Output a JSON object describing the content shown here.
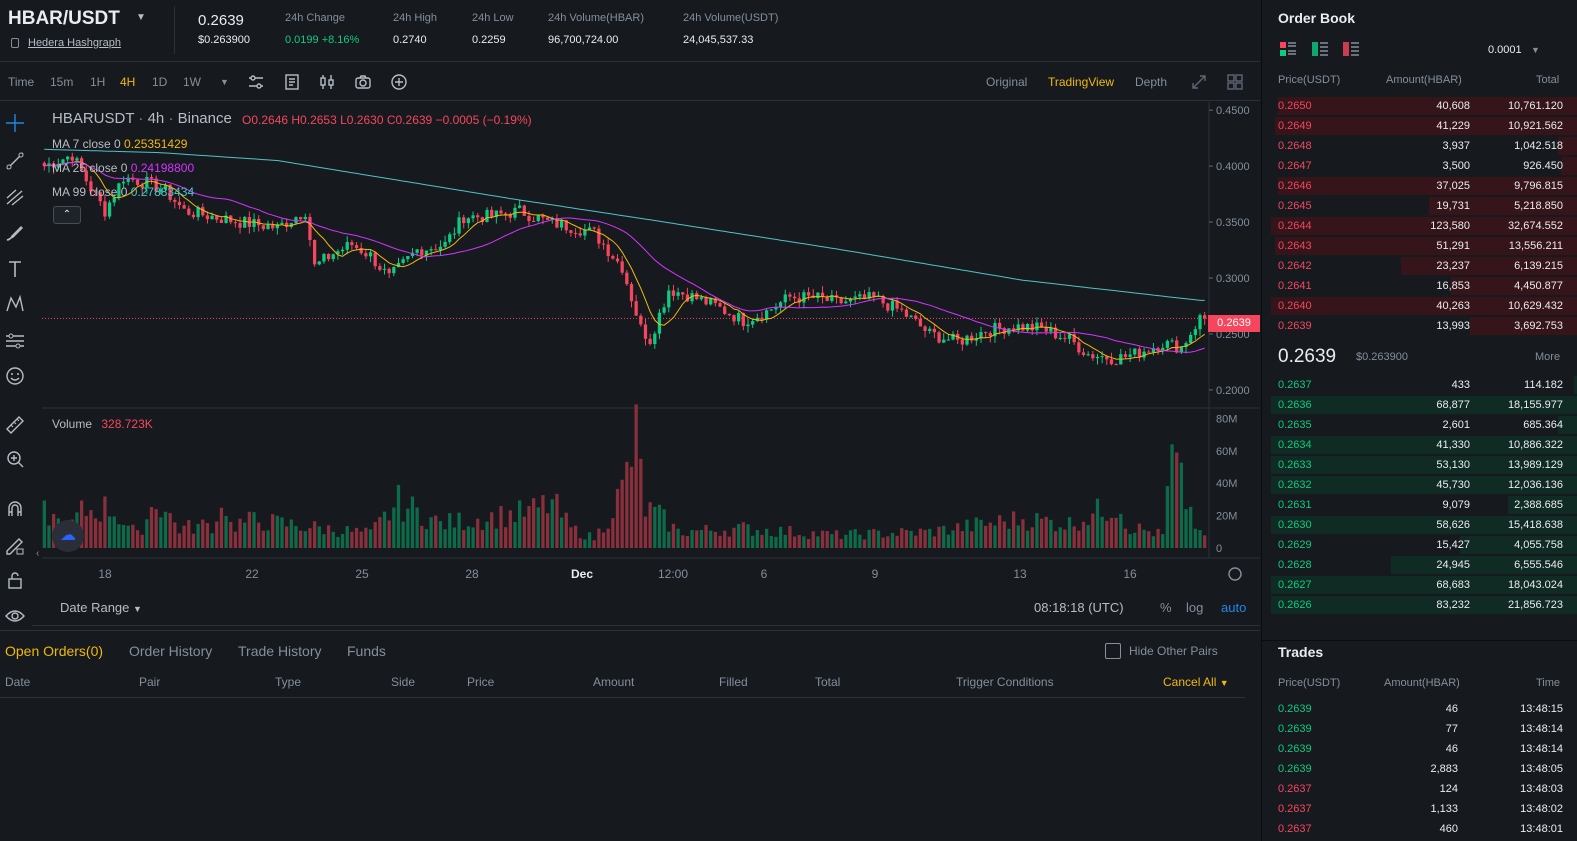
{
  "header": {
    "pair": "HBAR/USDT",
    "pair_name": "Hedera Hashgraph",
    "price": "0.2639",
    "price_usd": "$0.263900",
    "stats": [
      {
        "label": "24h Change",
        "value": "0.0199 +8.16%",
        "up": true
      },
      {
        "label": "24h High",
        "value": "0.2740"
      },
      {
        "label": "24h Low",
        "value": "0.2259"
      },
      {
        "label": "24h Volume(HBAR)",
        "value": "96,700,724.00"
      },
      {
        "label": "24h Volume(USDT)",
        "value": "24,045,537.33"
      }
    ]
  },
  "toolbar": {
    "timeframes": [
      "Time",
      "15m",
      "1H",
      "4H",
      "1D",
      "1W"
    ],
    "active_timeframe": "4H",
    "views": [
      "Original",
      "TradingView",
      "Depth"
    ],
    "active_view": "TradingView"
  },
  "chart_legend": {
    "symbol": "HBARUSDT",
    "interval": "4h",
    "exchange": "Binance",
    "open": "O0.2646",
    "high": "H0.2653",
    "low": "L0.2630",
    "close": "C0.2639",
    "change": "−0.0005 (−0.19%)",
    "ma7_label": "MA 7 close 0",
    "ma7_value": "0.25351429",
    "ma25_label": "MA 25 close 0",
    "ma25_value": "0.24198800",
    "ma99_label": "MA 99 close 0",
    "ma99_value": "0.27883434",
    "volume_label": "Volume",
    "volume_value": "328.723K",
    "last_price_tag": "0.2639",
    "collapse_glyph": "⌃",
    "tv_logo_glyph": "☁"
  },
  "chart_data": {
    "type": "candlestick",
    "price_axis_ticks": [
      "0.4500",
      "0.4000",
      "0.3500",
      "0.3000",
      "0.2500",
      "0.2000"
    ],
    "price_ylim": [
      0.1865,
      0.4555
    ],
    "volume_axis_ticks": [
      "80M",
      "60M",
      "40M",
      "20M",
      "0"
    ],
    "volume_ylim": [
      0,
      84
    ],
    "x_tick_labels": [
      "18",
      "22",
      "25",
      "28",
      "Dec",
      "12:00",
      "6",
      "9",
      "13",
      "16"
    ],
    "last_price": 0.2639,
    "close_anchors": [
      [
        0,
        0.4
      ],
      [
        6,
        0.41
      ],
      [
        10,
        0.38
      ],
      [
        13,
        0.36
      ],
      [
        17,
        0.39
      ],
      [
        22,
        0.385
      ],
      [
        26,
        0.378
      ],
      [
        30,
        0.36
      ],
      [
        36,
        0.355
      ],
      [
        42,
        0.35
      ],
      [
        50,
        0.345
      ],
      [
        56,
        0.36
      ],
      [
        58,
        0.31
      ],
      [
        62,
        0.322
      ],
      [
        66,
        0.33
      ],
      [
        70,
        0.32
      ],
      [
        74,
        0.3
      ],
      [
        80,
        0.325
      ],
      [
        86,
        0.33
      ],
      [
        90,
        0.355
      ],
      [
        96,
        0.355
      ],
      [
        102,
        0.36
      ],
      [
        108,
        0.35
      ],
      [
        114,
        0.345
      ],
      [
        118,
        0.34
      ],
      [
        124,
        0.31
      ],
      [
        128,
        0.255
      ],
      [
        130,
        0.245
      ],
      [
        134,
        0.29
      ],
      [
        138,
        0.285
      ],
      [
        144,
        0.275
      ],
      [
        150,
        0.262
      ],
      [
        155,
        0.27
      ],
      [
        160,
        0.283
      ],
      [
        166,
        0.282
      ],
      [
        170,
        0.278
      ],
      [
        178,
        0.282
      ],
      [
        184,
        0.27
      ],
      [
        190,
        0.25
      ],
      [
        196,
        0.243
      ],
      [
        202,
        0.253
      ],
      [
        208,
        0.257
      ],
      [
        214,
        0.255
      ],
      [
        220,
        0.245
      ],
      [
        224,
        0.232
      ],
      [
        230,
        0.228
      ],
      [
        234,
        0.232
      ],
      [
        240,
        0.242
      ],
      [
        244,
        0.238
      ],
      [
        248,
        0.264
      ]
    ],
    "ma99_anchors": [
      [
        0,
        0.415
      ],
      [
        25,
        0.412
      ],
      [
        50,
        0.405
      ],
      [
        100,
        0.371
      ],
      [
        130,
        0.352
      ],
      [
        170,
        0.326
      ],
      [
        210,
        0.298
      ],
      [
        248,
        0.28
      ]
    ],
    "volume_anchors": [
      [
        0,
        22
      ],
      [
        5,
        12
      ],
      [
        8,
        22
      ],
      [
        14,
        25
      ],
      [
        20,
        8
      ],
      [
        24,
        30
      ],
      [
        29,
        12
      ],
      [
        37,
        15
      ],
      [
        38,
        35
      ],
      [
        40,
        14
      ],
      [
        45,
        17
      ],
      [
        60,
        12
      ],
      [
        70,
        9
      ],
      [
        76,
        28
      ],
      [
        85,
        15
      ],
      [
        104,
        22
      ],
      [
        109,
        28
      ],
      [
        113,
        12
      ],
      [
        118,
        6
      ],
      [
        120,
        14
      ],
      [
        122,
        25
      ],
      [
        124,
        35
      ],
      [
        127,
        68
      ],
      [
        129,
        24
      ],
      [
        132,
        20
      ],
      [
        136,
        10
      ],
      [
        150,
        12
      ],
      [
        170,
        8
      ],
      [
        190,
        10
      ],
      [
        210,
        18
      ],
      [
        220,
        15
      ],
      [
        231,
        28
      ],
      [
        232,
        14
      ],
      [
        240,
        8
      ],
      [
        242,
        55
      ],
      [
        245,
        30
      ],
      [
        248,
        8
      ]
    ],
    "note_n": 250
  },
  "bottom_bar": {
    "date_range": "Date Range",
    "time": "08:18:18 (UTC)",
    "pct": "%",
    "log": "log",
    "auto": "auto"
  },
  "orders": {
    "tabs": [
      "Open Orders(0)",
      "Order History",
      "Trade History",
      "Funds"
    ],
    "hide_other_pairs": "Hide Other Pairs",
    "columns": [
      "Date",
      "Pair",
      "Type",
      "Side",
      "Price",
      "Amount",
      "Filled",
      "Total",
      "Trigger Conditions"
    ],
    "cancel_all": "Cancel All"
  },
  "order_book": {
    "title": "Order Book",
    "precision": "0.0001",
    "headers": [
      "Price(USDT)",
      "Amount(HBAR)",
      "Total"
    ],
    "asks": [
      {
        "price": "0.2650",
        "amount": "40,608",
        "total": "10,761.120",
        "depth": 0.95
      },
      {
        "price": "0.2649",
        "amount": "41,229",
        "total": "10,921.562",
        "depth": 0.96
      },
      {
        "price": "0.2648",
        "amount": "3,937",
        "total": "1,042.518",
        "depth": 0.06
      },
      {
        "price": "0.2647",
        "amount": "3,500",
        "total": "926.450",
        "depth": 0.05
      },
      {
        "price": "0.2646",
        "amount": "37,025",
        "total": "9,796.815",
        "depth": 0.95
      },
      {
        "price": "0.2645",
        "amount": "19,731",
        "total": "5,218.850",
        "depth": 0.47
      },
      {
        "price": "0.2644",
        "amount": "123,580",
        "total": "32,674.552",
        "depth": 0.97
      },
      {
        "price": "0.2643",
        "amount": "51,291",
        "total": "13,556.211",
        "depth": 0.96
      },
      {
        "price": "0.2642",
        "amount": "23,237",
        "total": "6,139.215",
        "depth": 0.56
      },
      {
        "price": "0.2641",
        "amount": "16,853",
        "total": "4,450.877",
        "depth": 0.4
      },
      {
        "price": "0.2640",
        "amount": "40,263",
        "total": "10,629.432",
        "depth": 0.97
      },
      {
        "price": "0.2639",
        "amount": "13,993",
        "total": "3,692.753",
        "depth": 0.34
      }
    ],
    "mid_price": "0.2639",
    "mid_usd": "$0.263900",
    "more": "More",
    "bids": [
      {
        "price": "0.2637",
        "amount": "433",
        "total": "114.182",
        "depth": 0.01
      },
      {
        "price": "0.2636",
        "amount": "68,877",
        "total": "18,155.977",
        "depth": 0.97
      },
      {
        "price": "0.2635",
        "amount": "2,601",
        "total": "685.364",
        "depth": 0.06
      },
      {
        "price": "0.2634",
        "amount": "41,330",
        "total": "10,886.322",
        "depth": 0.97
      },
      {
        "price": "0.2633",
        "amount": "53,130",
        "total": "13,989.129",
        "depth": 0.97
      },
      {
        "price": "0.2632",
        "amount": "45,730",
        "total": "12,036.136",
        "depth": 0.97
      },
      {
        "price": "0.2631",
        "amount": "9,079",
        "total": "2,388.685",
        "depth": 0.22
      },
      {
        "price": "0.2630",
        "amount": "58,626",
        "total": "15,418.638",
        "depth": 0.97
      },
      {
        "price": "0.2629",
        "amount": "15,427",
        "total": "4,055.758",
        "depth": 0.37
      },
      {
        "price": "0.2628",
        "amount": "24,945",
        "total": "6,555.546",
        "depth": 0.59
      },
      {
        "price": "0.2627",
        "amount": "68,683",
        "total": "18,043.024",
        "depth": 0.97
      },
      {
        "price": "0.2626",
        "amount": "83,232",
        "total": "21,856.723",
        "depth": 0.97
      }
    ]
  },
  "trades": {
    "title": "Trades",
    "headers": [
      "Price(USDT)",
      "Amount(HBAR)",
      "Time"
    ],
    "rows": [
      {
        "price": "0.2639",
        "amount": "46",
        "time": "13:48:15",
        "side": "up"
      },
      {
        "price": "0.2639",
        "amount": "77",
        "time": "13:48:14",
        "side": "up"
      },
      {
        "price": "0.2639",
        "amount": "46",
        "time": "13:48:14",
        "side": "up"
      },
      {
        "price": "0.2639",
        "amount": "2,883",
        "time": "13:48:05",
        "side": "up"
      },
      {
        "price": "0.2637",
        "amount": "124",
        "time": "13:48:03",
        "side": "down"
      },
      {
        "price": "0.2637",
        "amount": "1,133",
        "time": "13:48:02",
        "side": "down"
      },
      {
        "price": "0.2637",
        "amount": "460",
        "time": "13:48:01",
        "side": "down"
      }
    ]
  },
  "colors": {
    "up": "#0ecb81",
    "down": "#f6465d",
    "accent": "#f0b90b",
    "ma7": "#f0b90b",
    "ma25": "#d633ff",
    "ma99": "#4fc3c9"
  }
}
